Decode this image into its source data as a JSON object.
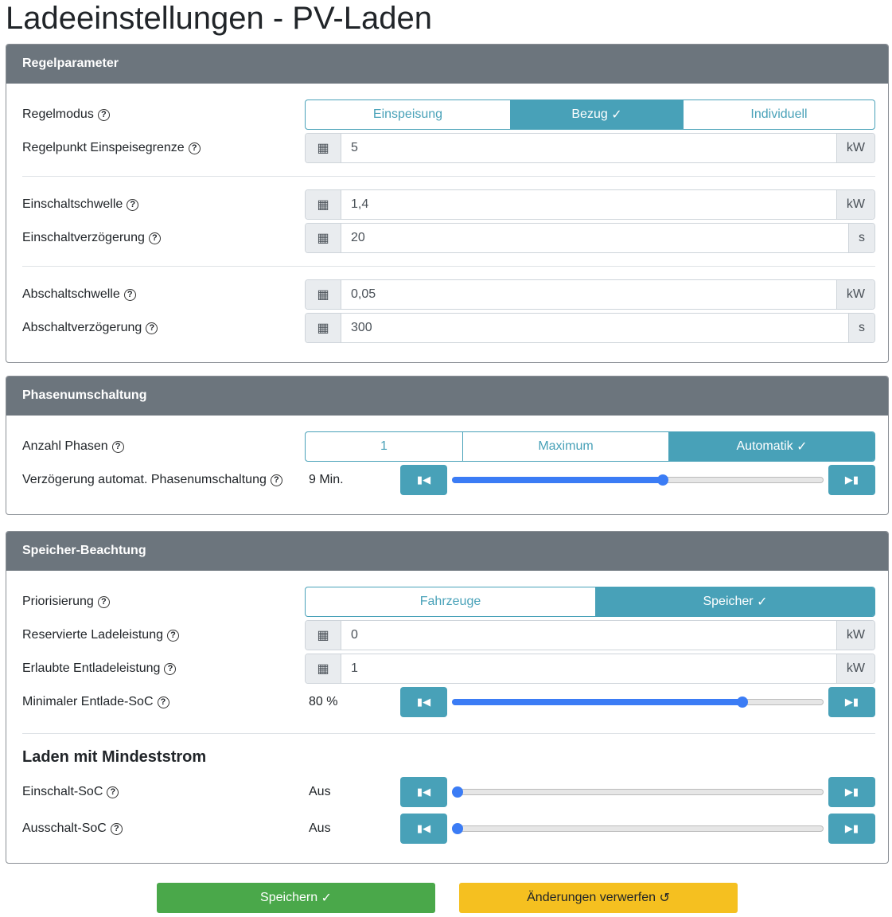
{
  "title": "Ladeeinstellungen - PV-Laden",
  "regel": {
    "header": "Regelparameter",
    "modus": {
      "label": "Regelmodus",
      "options": [
        "Einspeisung",
        "Bezug",
        "Individuell"
      ],
      "selected": "Bezug"
    },
    "punkt": {
      "label": "Regelpunkt Einspeisegrenze",
      "value": "5",
      "unit": "kW"
    },
    "ein_schwelle": {
      "label": "Einschaltschwelle",
      "value": "1,4",
      "unit": "kW"
    },
    "ein_verz": {
      "label": "Einschaltverzögerung",
      "value": "20",
      "unit": "s"
    },
    "aus_schwelle": {
      "label": "Abschaltschwelle",
      "value": "0,05",
      "unit": "kW"
    },
    "aus_verz": {
      "label": "Abschaltverzögerung",
      "value": "300",
      "unit": "s"
    }
  },
  "phasen": {
    "header": "Phasenumschaltung",
    "anzahl": {
      "label": "Anzahl Phasen",
      "options": [
        "1",
        "Maximum",
        "Automatik"
      ],
      "selected": "Automatik"
    },
    "verz": {
      "label": "Verzögerung automat. Phasenumschaltung",
      "value": "9 Min.",
      "level": 0.57
    }
  },
  "speicher": {
    "header": "Speicher-Beachtung",
    "prio": {
      "label": "Priorisierung",
      "options": [
        "Fahrzeuge",
        "Speicher"
      ],
      "selected": "Speicher"
    },
    "reserviert": {
      "label": "Reservierte Ladeleistung",
      "value": "0",
      "unit": "kW"
    },
    "entlade": {
      "label": "Erlaubte Entladeleistung",
      "value": "1",
      "unit": "kW"
    },
    "soc": {
      "label": "Minimaler Entlade-SoC",
      "value": "80 %",
      "level": 0.79
    },
    "mindest_heading": "Laden mit Mindeststrom",
    "ein_soc": {
      "label": "Einschalt-SoC",
      "value": "Aus",
      "level": 0
    },
    "aus_soc": {
      "label": "Ausschalt-SoC",
      "value": "Aus",
      "level": 0
    }
  },
  "buttons": {
    "save": "Speichern",
    "discard": "Änderungen verwerfen"
  },
  "colors": {
    "accent": "#48a1b8",
    "header": "#6c757d",
    "save": "#4aa84a",
    "discard": "#f5c020",
    "slider": "#3b7cf5"
  }
}
